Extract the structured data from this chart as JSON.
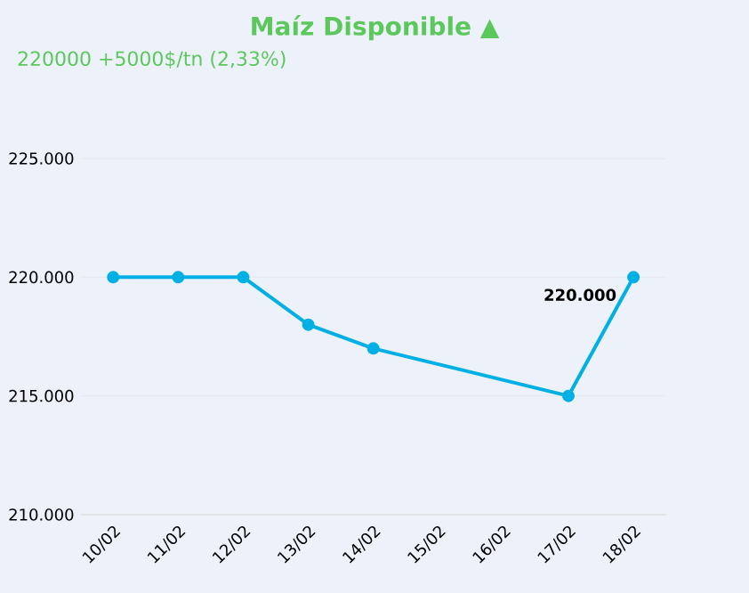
{
  "chart_data": {
    "type": "line",
    "title": "Maíz Disponible ▲",
    "subtitle": "220000 +5000$/tn (2,33%)",
    "categories": [
      "10/02",
      "11/02",
      "12/02",
      "13/02",
      "14/02",
      "15/02",
      "16/02",
      "17/02",
      "18/02"
    ],
    "series": [
      {
        "color": "#00b0e4",
        "values": [
          220000,
          220000,
          220000,
          218000,
          217000,
          null,
          null,
          215000,
          220000
        ],
        "value_labels": [
          null,
          null,
          null,
          null,
          null,
          null,
          null,
          null,
          "220.000"
        ]
      }
    ],
    "ylim": [
      210000,
      225000
    ],
    "yticks": [
      {
        "value": 210000,
        "label": "210.000"
      },
      {
        "value": 215000,
        "label": "215.000"
      },
      {
        "value": 220000,
        "label": "220.000"
      },
      {
        "value": 225000,
        "label": "225.000"
      }
    ],
    "grid": "y",
    "marker": "circle",
    "line_style": "solid"
  }
}
